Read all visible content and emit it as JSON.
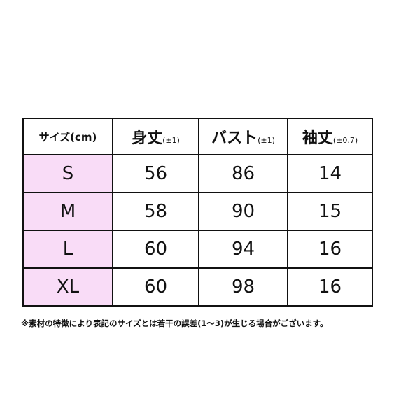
{
  "table": {
    "header": [
      {
        "text": "サイズ(cm)"
      },
      {
        "main": "身丈",
        "note": "(±1)"
      },
      {
        "main": "バスト",
        "note": "(±1)"
      },
      {
        "main": "袖丈",
        "note": "(±0.7)"
      }
    ],
    "rows": [
      [
        "S",
        56,
        86,
        14
      ],
      [
        "M",
        58,
        90,
        15
      ],
      [
        "L",
        60,
        94,
        16
      ],
      [
        "XL",
        60,
        98,
        16
      ]
    ]
  },
  "footnote": "※素材の特徴により表記のサイズとは若干の誤差(1～3)が生じる場合がございます。"
}
